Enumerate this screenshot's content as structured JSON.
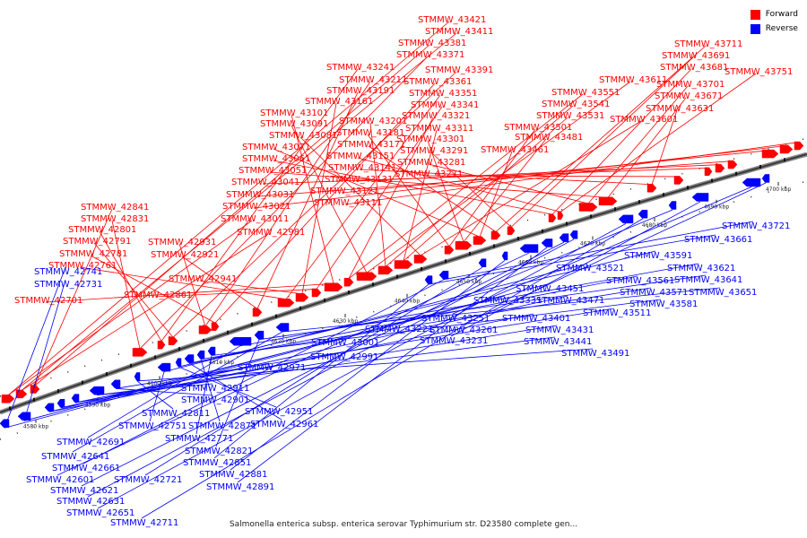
{
  "legend": {
    "forward_label": "Forward",
    "reverse_label": "Reverse",
    "forward_color": "#ff0000",
    "reverse_color": "#0000ff"
  },
  "caption": "Salmonella enterica subsp. enterica serovar Typhimurium str. D23580 complete gen...",
  "ticks": [
    "4580 kbp",
    "4590 kbp",
    "4600 kbp",
    "4610 kbp",
    "4620 kbp",
    "4630 kbp",
    "4640 kbp",
    "4650 kbp",
    "4660 kbp",
    "4670 kbp",
    "4680 kbp",
    "4690 kbp",
    "4700 kbp"
  ],
  "forward_genes": [
    "STMMW_43421",
    "STMMW_43411",
    "STMMW_43381",
    "STMMW_43371",
    "STMMW_43241",
    "STMMW_43391",
    "STMMW_43211",
    "STMMW_43361",
    "STMMW_43191",
    "STMMW_43351",
    "STMMW_43161",
    "STMMW_43341",
    "STMMW_43101",
    "STMMW_43321",
    "STMMW_43091",
    "STMMW_43201",
    "STMMW_43311",
    "STMMW_43081",
    "STMMW_43181",
    "STMMW_43301",
    "STMMW_43071",
    "STMMW_43171",
    "STMMW_43291",
    "STMMW_43061",
    "STMMW_43151",
    "STMMW_43281",
    "STMMW_43051",
    "STMMW_43141",
    "STMMW_43271",
    "STMMW_43041",
    "STMMW_43131",
    "STMMW_43031",
    "STMMW_43121",
    "STMMW_43021",
    "STMMW_43111",
    "STMMW_43011",
    "STMMW_42981",
    "STMMW_42841",
    "STMMW_42831",
    "STMMW_42801",
    "STMMW_42791",
    "STMMW_42931",
    "STMMW_42781",
    "STMMW_42921",
    "STMMW_42761",
    "STMMW_42941",
    "STMMW_42861",
    "STMMW_42701",
    "STMMW_43551",
    "STMMW_43611",
    "STMMW_43541",
    "STMMW_43531",
    "STMMW_43601",
    "STMMW_43501",
    "STMMW_43481",
    "STMMW_43461",
    "STMMW_43711",
    "STMMW_43691",
    "STMMW_43681",
    "STMMW_43751",
    "STMMW_43701",
    "STMMW_43671",
    "STMMW_43631"
  ],
  "reverse_genes": [
    "STMMW_42741",
    "STMMW_42731",
    "STMMW_43001",
    "STMMW_42991",
    "STMMW_42971",
    "STMMW_42911",
    "STMMW_42901",
    "STMMW_42811",
    "STMMW_42751",
    "STMMW_42951",
    "STMMW_42961",
    "STMMW_42871",
    "STMMW_42771",
    "STMMW_42691",
    "STMMW_42821",
    "STMMW_42641",
    "STMMW_42851",
    "STMMW_42661",
    "STMMW_42721",
    "STMMW_42881",
    "STMMW_42601",
    "STMMW_42891",
    "STMMW_42621",
    "STMMW_42631",
    "STMMW_42651",
    "STMMW_42711",
    "STMMW_43221",
    "STMMW_43231",
    "STMMW_43251",
    "STMMW_43261",
    "STMMW_43331",
    "STMMW_43451",
    "STMMW_43401",
    "STMMW_43471",
    "STMMW_43431",
    "STMMW_43441",
    "STMMW_43511",
    "STMMW_43491",
    "STMMW_43521",
    "STMMW_43591",
    "STMMW_43561",
    "STMMW_43571",
    "STMMW_43581",
    "STMMW_43621",
    "STMMW_43641",
    "STMMW_43651",
    "STMMW_43661",
    "STMMW_43721"
  ]
}
